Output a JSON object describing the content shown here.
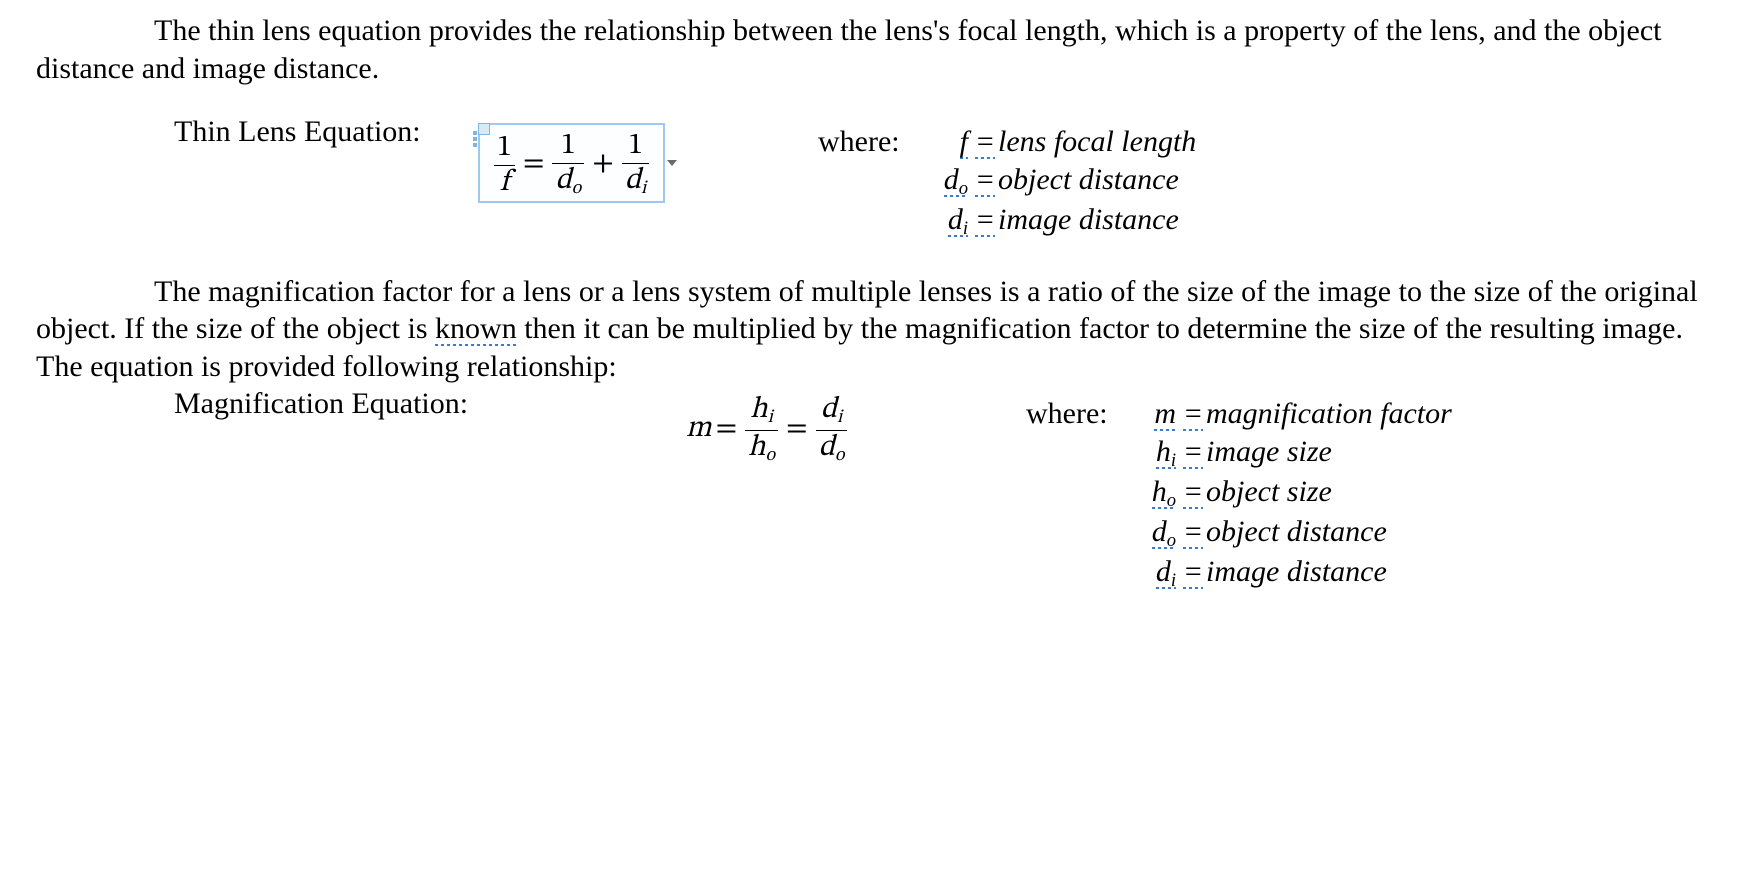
{
  "colors": {
    "text": "#000000",
    "background": "#ffffff",
    "selection_border": "#9ec8f0",
    "selection_fill": "#fdfeff",
    "underline_blue": "#2e75d4"
  },
  "typography": {
    "body_font": "Times New Roman",
    "body_size_pt": 15,
    "math_font": "Cambria Math",
    "line_height": 1.25
  },
  "paragraphs": {
    "p1": "The thin lens equation provides the relationship between the lens's focal length, which is a property of the lens, and the object distance and image distance.",
    "label1": "Thin Lens Equation:",
    "p2_a": "The magnification factor for a lens or a lens system of multiple lenses is a ratio of the size of the image to the size of the original object.  If the size of the object is ",
    "p2_known": "known",
    "p2_b": " then it can be multiplied by the magnification factor to determine the size of the resulting image.  The equation is provided following relationship:",
    "label2": "Magnification Equation:",
    "where": "where:"
  },
  "equations": {
    "thin_lens": {
      "selected": true,
      "lhs_num": "1",
      "lhs_den": "f",
      "eq": "=",
      "t1_num": "1",
      "t1_den_base": "d",
      "t1_den_sub": "o",
      "plus": "+",
      "t2_num": "1",
      "t2_den_base": "d",
      "t2_den_sub": "i"
    },
    "magnification": {
      "m": "m",
      "eq1": "=",
      "f1_num_base": "h",
      "f1_num_sub": "i",
      "f1_den_base": "h",
      "f1_den_sub": "o",
      "eq2": "=",
      "f2_num_base": "d",
      "f2_num_sub": "i",
      "f2_den_base": "d",
      "f2_den_sub": "o"
    }
  },
  "definitions": {
    "set1": [
      {
        "sym_base": "f",
        "sym_sub": "",
        "def": "lens focal length",
        "underline_sym": true
      },
      {
        "sym_base": "d",
        "sym_sub": "o",
        "def": "object distance",
        "underline_sym": true
      },
      {
        "sym_base": "d",
        "sym_sub": "i",
        "def": "image distance",
        "underline_sym": true
      }
    ],
    "set2": [
      {
        "sym_base": "m",
        "sym_sub": "",
        "def": "magnification factor",
        "underline_sym": true
      },
      {
        "sym_base": "h",
        "sym_sub": "i",
        "def": "image size",
        "underline_sym": true
      },
      {
        "sym_base": "h",
        "sym_sub": "o",
        "def": "object size",
        "underline_sym": true
      },
      {
        "sym_base": "d",
        "sym_sub": "o",
        "def": "object distance",
        "underline_sym": true
      },
      {
        "sym_base": "d",
        "sym_sub": "i",
        "def": "image distance",
        "underline_sym": true
      }
    ]
  }
}
